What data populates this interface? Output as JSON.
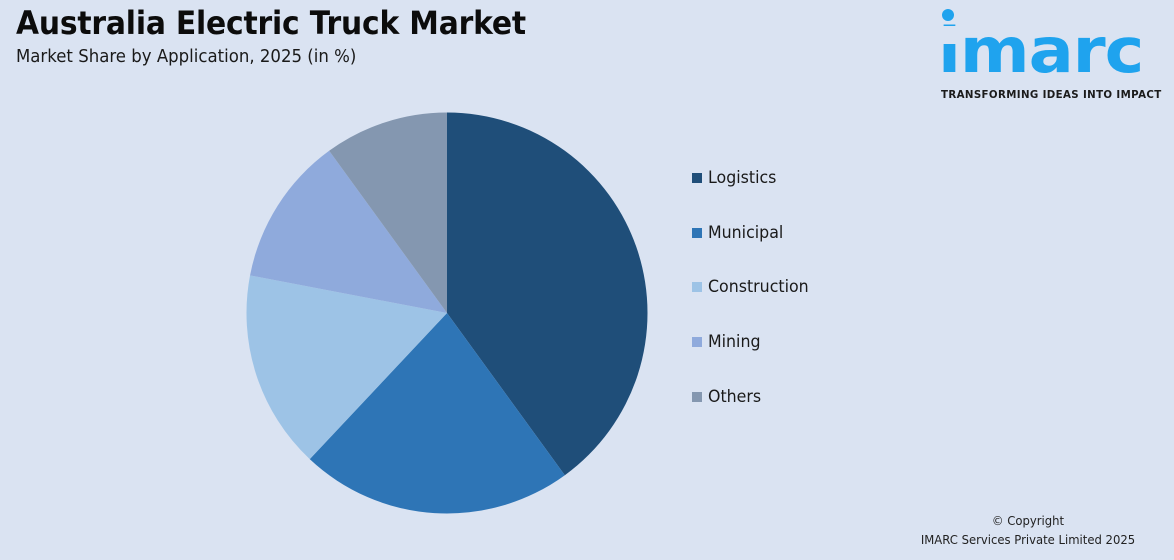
{
  "header": {
    "title": "Australia Electric Truck Market",
    "subtitle": "Market Share by Application, 2025 (in %)"
  },
  "logo": {
    "wordmark": "imarc",
    "tagline": "TRANSFORMING IDEAS INTO IMPACT",
    "color": "#1fa3ee"
  },
  "footer": {
    "copyright_line1": "© Copyright",
    "copyright_line2": "IMARC Services Private Limited 2025"
  },
  "legend": [
    {
      "label": "Logistics",
      "color": "#1f4e79"
    },
    {
      "label": "Municipal",
      "color": "#2e75b6"
    },
    {
      "label": "Construction",
      "color": "#9dc3e6"
    },
    {
      "label": "Mining",
      "color": "#8faadc"
    },
    {
      "label": "Others",
      "color": "#8497b0"
    }
  ],
  "chart_data": {
    "type": "pie",
    "title": "Australia Electric Truck Market",
    "subtitle": "Market Share by Application, 2025 (in %)",
    "categories": [
      "Logistics",
      "Municipal",
      "Construction",
      "Mining",
      "Others"
    ],
    "values": [
      40,
      22,
      16,
      12,
      10
    ],
    "colors": [
      "#1f4e79",
      "#2e75b6",
      "#9dc3e6",
      "#8faadc",
      "#8497b0"
    ],
    "start_angle": "12 o'clock, clockwise",
    "data_labels": false,
    "legend_position": "right"
  }
}
